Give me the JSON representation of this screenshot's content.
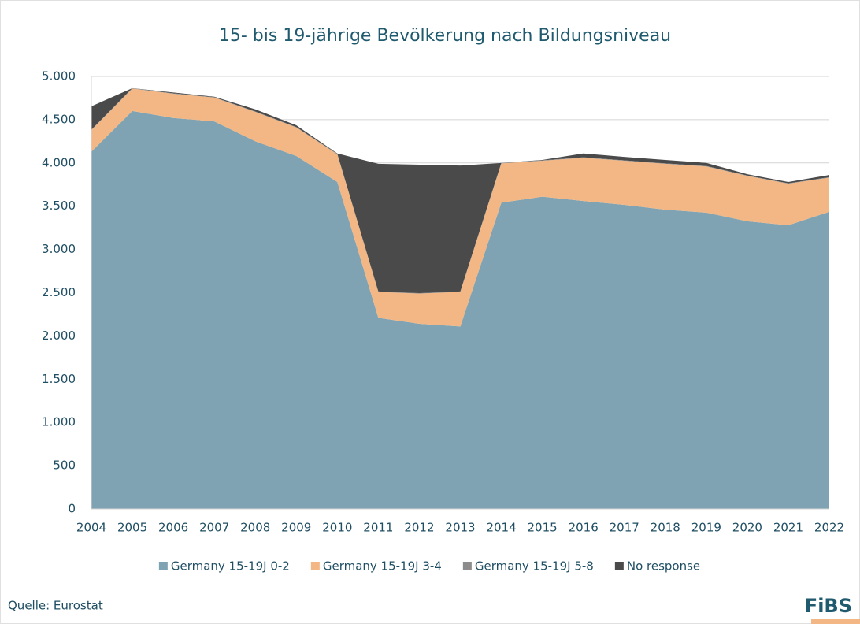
{
  "chart_data": {
    "type": "area",
    "stacked": true,
    "title": "15- bis 19-jährige Bevölkerung nach Bildungsniveau",
    "categories": [
      "2004",
      "2005",
      "2006",
      "2007",
      "2008",
      "2009",
      "2010",
      "2011",
      "2012",
      "2013",
      "2014",
      "2015",
      "2016",
      "2017",
      "2018",
      "2019",
      "2020",
      "2021",
      "2022"
    ],
    "series": [
      {
        "name": "Germany 15-19J 0-2",
        "color": "#7fa3b3",
        "values": [
          4130,
          4600,
          4520,
          4480,
          4250,
          4080,
          3780,
          2210,
          2140,
          2110,
          3540,
          3610,
          3560,
          3515,
          3460,
          3425,
          3325,
          3280,
          3435
        ]
      },
      {
        "name": "Germany 15-19J 3-4",
        "color": "#f2b784",
        "values": [
          250,
          260,
          280,
          275,
          340,
          330,
          320,
          300,
          350,
          400,
          455,
          415,
          500,
          510,
          530,
          535,
          525,
          480,
          395
        ]
      },
      {
        "name": "Germany 15-19J 5-8",
        "color": "#8c8c8c",
        "values": [
          5,
          5,
          5,
          5,
          5,
          5,
          5,
          5,
          5,
          5,
          5,
          5,
          5,
          5,
          5,
          5,
          5,
          5,
          5
        ]
      },
      {
        "name": "No response",
        "color": "#4a4a4a",
        "values": [
          270,
          0,
          10,
          5,
          25,
          20,
          5,
          1475,
          1485,
          1455,
          0,
          5,
          45,
          40,
          40,
          35,
          15,
          15,
          25
        ]
      }
    ],
    "ylim": [
      0,
      5000
    ],
    "yticks": [
      0,
      500,
      {
        "value": 1000,
        "label": "1.000"
      },
      {
        "value": 1500,
        "label": "1.500"
      },
      {
        "value": 2000,
        "label": "2.000"
      },
      {
        "value": 2500,
        "label": "2.500"
      },
      {
        "value": 3000,
        "label": "3.000"
      },
      {
        "value": 3500,
        "label": "3.500"
      },
      {
        "value": 4000,
        "label": "4.000"
      },
      {
        "value": 4500,
        "label": "4.500"
      },
      {
        "value": 5000,
        "label": "5.000"
      }
    ],
    "grid": true,
    "legend": "bottom",
    "source": "Quelle: Eurostat",
    "logo": "FiBS"
  }
}
